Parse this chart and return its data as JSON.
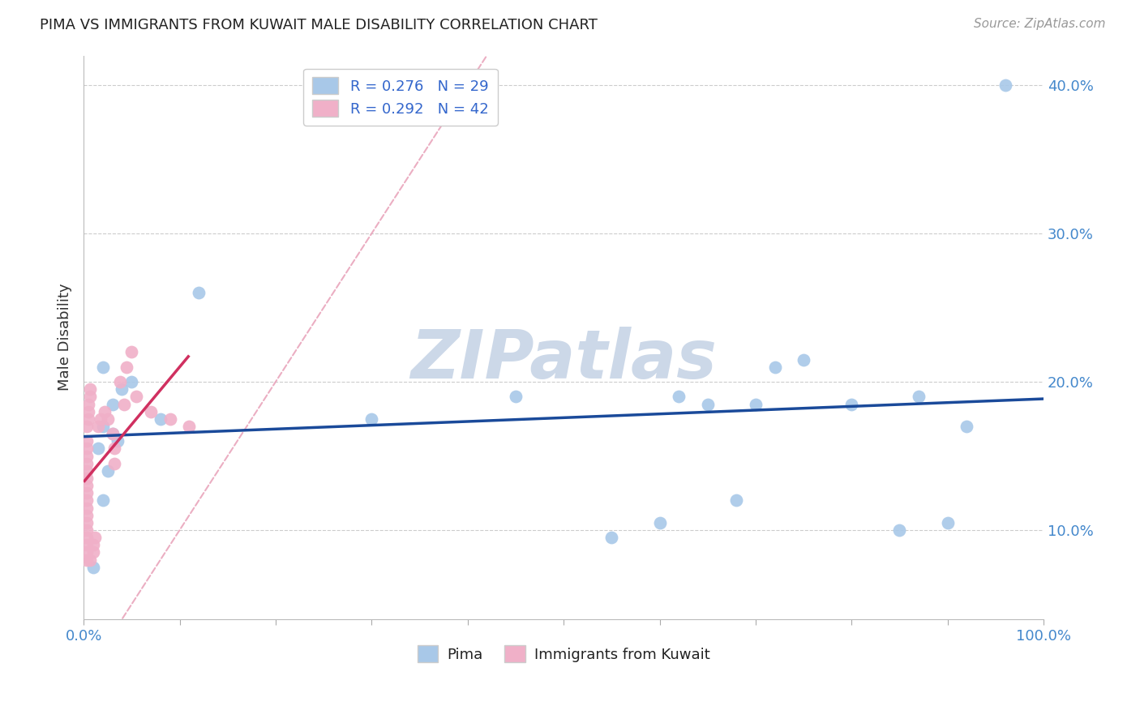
{
  "title": "PIMA VS IMMIGRANTS FROM KUWAIT MALE DISABILITY CORRELATION CHART",
  "source": "Source: ZipAtlas.com",
  "ylabel": "Male Disability",
  "pima_x": [
    0.02,
    0.03,
    0.04,
    0.02,
    0.05,
    0.03,
    0.015,
    0.025,
    0.01,
    0.02,
    0.035,
    0.08,
    0.12,
    0.3,
    0.45,
    0.55,
    0.6,
    0.62,
    0.65,
    0.68,
    0.7,
    0.72,
    0.75,
    0.8,
    0.85,
    0.87,
    0.9,
    0.92,
    0.96
  ],
  "pima_y": [
    0.17,
    0.185,
    0.195,
    0.21,
    0.2,
    0.165,
    0.155,
    0.14,
    0.075,
    0.12,
    0.16,
    0.175,
    0.26,
    0.175,
    0.19,
    0.095,
    0.105,
    0.19,
    0.185,
    0.12,
    0.185,
    0.21,
    0.215,
    0.185,
    0.1,
    0.19,
    0.105,
    0.17,
    0.4
  ],
  "kuwait_x": [
    0.003,
    0.003,
    0.003,
    0.003,
    0.003,
    0.003,
    0.003,
    0.003,
    0.003,
    0.003,
    0.003,
    0.003,
    0.003,
    0.003,
    0.003,
    0.003,
    0.003,
    0.003,
    0.005,
    0.005,
    0.005,
    0.007,
    0.007,
    0.007,
    0.01,
    0.01,
    0.012,
    0.015,
    0.018,
    0.022,
    0.025,
    0.03,
    0.032,
    0.032,
    0.038,
    0.042,
    0.045,
    0.05,
    0.055,
    0.07,
    0.09,
    0.11
  ],
  "kuwait_y": [
    0.1,
    0.105,
    0.11,
    0.115,
    0.12,
    0.125,
    0.13,
    0.135,
    0.14,
    0.145,
    0.15,
    0.155,
    0.16,
    0.08,
    0.085,
    0.09,
    0.095,
    0.17,
    0.175,
    0.18,
    0.185,
    0.19,
    0.195,
    0.08,
    0.085,
    0.09,
    0.095,
    0.17,
    0.175,
    0.18,
    0.175,
    0.165,
    0.155,
    0.145,
    0.2,
    0.185,
    0.21,
    0.22,
    0.19,
    0.18,
    0.175,
    0.17
  ],
  "pima_color": "#a8c8e8",
  "kuwait_color": "#f0b0c8",
  "pima_line_color": "#1a4a9a",
  "kuwait_line_color": "#d03060",
  "diagonal_color": "#e8a0b8",
  "R_pima": 0.276,
  "N_pima": 29,
  "R_kuwait": 0.292,
  "N_kuwait": 42,
  "xlim": [
    0.0,
    1.0
  ],
  "ylim_min": 0.04,
  "ylim_max": 0.42,
  "yticks": [
    0.1,
    0.2,
    0.3,
    0.4
  ],
  "xticks_minor": [
    0.0,
    0.1,
    0.2,
    0.3,
    0.4,
    0.5,
    0.6,
    0.7,
    0.8,
    0.9,
    1.0
  ],
  "background_color": "#ffffff",
  "watermark_text": "ZIPatlas",
  "watermark_color": "#ccd8e8",
  "tick_color": "#4488cc",
  "label_color": "#333333"
}
